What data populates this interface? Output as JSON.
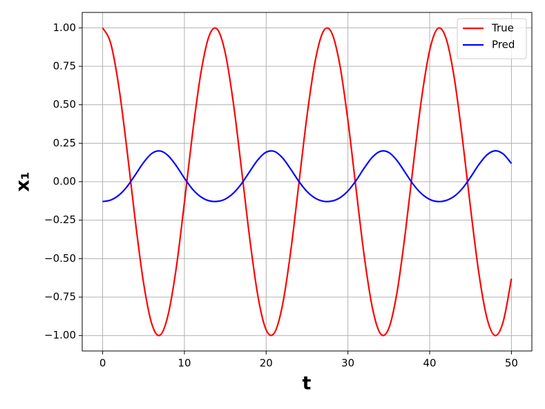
{
  "chart_data": {
    "type": "line",
    "x_label": "t",
    "y_label": "x₁",
    "x": [
      0,
      1,
      2,
      3,
      4,
      5,
      6,
      7,
      8,
      9,
      10,
      11,
      12,
      13,
      14,
      15,
      16,
      17,
      18,
      19,
      20,
      21,
      22,
      23,
      24,
      25,
      26,
      27,
      28,
      29,
      30,
      31,
      32,
      33,
      34,
      35,
      36,
      37,
      38,
      39,
      40,
      41,
      42,
      43,
      44,
      45,
      46,
      47,
      48,
      49,
      50
    ],
    "series": [
      {
        "name": "True",
        "color": "#ff0000",
        "values": [
          1,
          0.897,
          0.61,
          0.197,
          -0.257,
          -0.656,
          -0.922,
          -0.998,
          -0.867,
          -0.561,
          -0.136,
          0.317,
          0.701,
          0.944,
          0.992,
          0.836,
          0.507,
          0.075,
          -0.373,
          -0.746,
          -0.963,
          -0.983,
          -0.801,
          -0.454,
          -0.013,
          0.43,
          0.785,
          0.978,
          0.97,
          0.762,
          0.398,
          -0.048,
          -0.485,
          -0.821,
          -0.989,
          -0.953,
          -0.721,
          -0.34,
          0.11,
          0.538,
          0.855,
          0.996,
          0.932,
          0.677,
          0.282,
          -0.171,
          -0.589,
          -0.885,
          -1.0,
          -0.908,
          -0.63
        ]
      },
      {
        "name": "Pred",
        "color": "#0000ff",
        "values": [
          -0.129,
          -0.119,
          -0.087,
          -0.031,
          0.045,
          0.124,
          0.183,
          0.2,
          0.17,
          0.104,
          0.023,
          -0.049,
          -0.098,
          -0.124,
          -0.128,
          -0.113,
          -0.074,
          -0.012,
          0.067,
          0.143,
          0.192,
          0.197,
          0.155,
          0.082,
          0.002,
          -0.064,
          -0.107,
          -0.127,
          -0.126,
          -0.105,
          -0.06,
          0.008,
          0.089,
          0.16,
          0.198,
          0.19,
          0.138,
          0.06,
          -0.018,
          -0.078,
          -0.115,
          -0.129,
          -0.122,
          -0.095,
          -0.044,
          0.029,
          0.11,
          0.174,
          0.201,
          0.18,
          0.118
        ]
      }
    ],
    "xlim": [
      -2.5,
      52.5
    ],
    "xticks": [
      0,
      10,
      20,
      30,
      40,
      50
    ],
    "ylim": [
      -1.1,
      1.1
    ],
    "yticks": [
      {
        "value": -1,
        "label": "−1.00"
      },
      {
        "value": -0.75,
        "label": "−0.75"
      },
      {
        "value": -0.5,
        "label": "−0.50"
      },
      {
        "value": -0.25,
        "label": "−0.25"
      },
      {
        "value": 0,
        "label": "0.00"
      },
      {
        "value": 0.25,
        "label": "0.25"
      },
      {
        "value": 0.5,
        "label": "0.50"
      },
      {
        "value": 0.75,
        "label": "0.75"
      },
      {
        "value": 1,
        "label": "1.00"
      }
    ],
    "grid": true,
    "legend": "upper-right"
  }
}
